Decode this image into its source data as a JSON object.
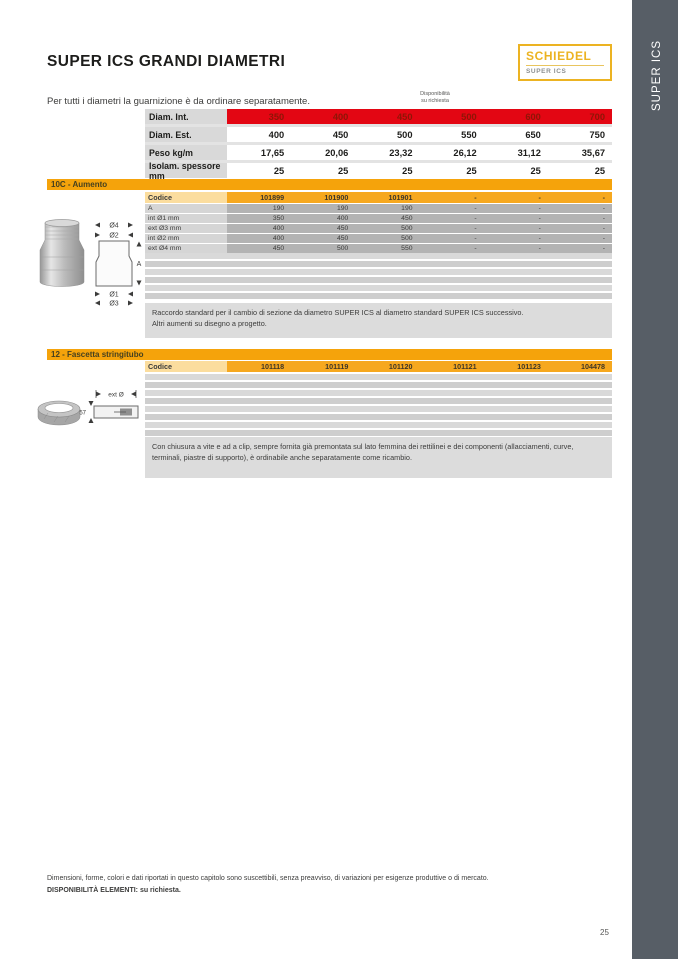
{
  "sidebar": {
    "label": "SUPER ICS"
  },
  "logo": {
    "brand": "SCHIEDEL",
    "sub": "SUPER ICS"
  },
  "header": {
    "title": "SUPER ICS GRANDI DIAMETRI"
  },
  "intro": {
    "text": "Per tutti i diametri la guarnizione è da ordinare separatamente.",
    "availability_note": "Disponibilità\nsu richiesta"
  },
  "diameter_table": {
    "rows": [
      {
        "label": "Diam. Int.",
        "values": [
          "350",
          "400",
          "450",
          "500",
          "600",
          "700"
        ],
        "highlight": "red"
      },
      {
        "label": "Diam. Est.",
        "values": [
          "400",
          "450",
          "500",
          "550",
          "650",
          "750"
        ]
      },
      {
        "label": "Peso kg/m",
        "values": [
          "17,65",
          "20,06",
          "23,32",
          "26,12",
          "31,12",
          "35,67"
        ]
      },
      {
        "label": "Isolam. spessore mm",
        "values": [
          "25",
          "25",
          "25",
          "25",
          "25",
          "25"
        ]
      }
    ]
  },
  "section_aumento": {
    "title": "10C - Aumento",
    "rows": [
      {
        "label": "Codice",
        "values": [
          "101899",
          "101900",
          "101901",
          "-",
          "-",
          "-"
        ],
        "highlight": "codice"
      },
      {
        "label": "A",
        "values": [
          "190",
          "190",
          "190",
          "-",
          "-",
          "-"
        ]
      },
      {
        "label": "int Ø1 mm",
        "values": [
          "350",
          "400",
          "450",
          "-",
          "-",
          "-"
        ]
      },
      {
        "label": "ext Ø3 mm",
        "values": [
          "400",
          "450",
          "500",
          "-",
          "-",
          "-"
        ]
      },
      {
        "label": "int Ø2 mm",
        "values": [
          "400",
          "450",
          "500",
          "-",
          "-",
          "-"
        ]
      },
      {
        "label": "ext Ø4 mm",
        "values": [
          "450",
          "500",
          "550",
          "-",
          "-",
          "-"
        ]
      }
    ],
    "description": "Raccordo standard per il cambio di sezione da diametro SUPER ICS al diametro standard SUPER ICS successivo.\nAltri aumenti su disegno a progetto.",
    "diagram_labels": {
      "d4": "Ø4",
      "d2": "Ø2",
      "a": "A",
      "d1": "Ø1",
      "d3": "Ø3"
    }
  },
  "section_fascetta": {
    "title": "12 - Fascetta stringitubo",
    "rows": [
      {
        "label": "Codice",
        "values": [
          "101118",
          "101119",
          "101120",
          "101121",
          "101123",
          "104478"
        ],
        "highlight": "codice"
      }
    ],
    "description": "Con chiusura a vite e ad a clip, sempre fornita già premontata sul lato femmina dei rettilinei e dei componenti (allacciamenti, curve, terminali, piastre di supporto), è ordinabile anche separatamente come ricambio.",
    "diagram_labels": {
      "ext": "ext Ø",
      "height": "57"
    }
  },
  "footer": {
    "line1": "Dimensioni, forme, colori e dati riportati in questo capitolo sono suscettibili, senza preavviso, di variazioni per esigenze produttive o di mercato.",
    "line2": "DISPONIBILITÀ  ELEMENTI: su richiesta."
  },
  "page": {
    "number": "25"
  },
  "colors": {
    "accent_red": "#e30613",
    "accent_amber": "#f5a30b",
    "logo_gold": "#ecb322",
    "sidebar_gray": "#575e66"
  }
}
